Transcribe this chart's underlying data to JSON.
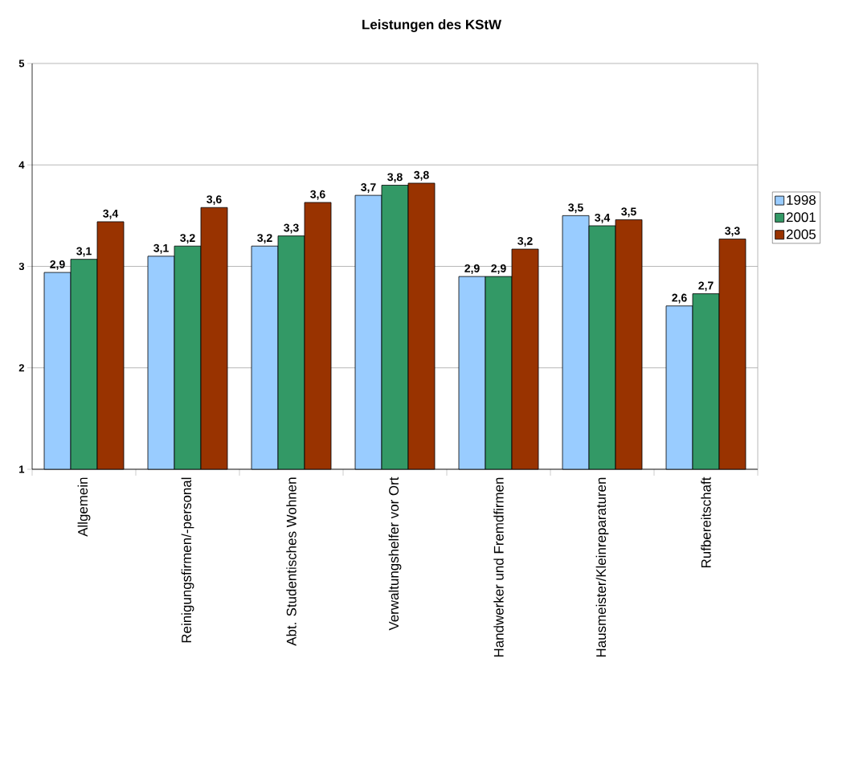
{
  "chart_data": {
    "type": "bar",
    "title": "Leistungen des KStW",
    "categories": [
      "Allgemein",
      "Reinigungsfirmen/-personal",
      "Abt. Studentisches Wohnen",
      "Verwaltungshelfer vor Ort",
      "Handwerker und Fremdfirmen",
      "Hausmeister/Kleinreparaturen",
      "Rufbereitschaft"
    ],
    "series": [
      {
        "name": "1998",
        "color": "#99ccff",
        "values": [
          2.94,
          3.1,
          3.2,
          3.7,
          2.9,
          3.5,
          2.61
        ],
        "value_labels": [
          "2,9",
          "3,1",
          "3,2",
          "3,7",
          "2,9",
          "3,5",
          "2,6"
        ]
      },
      {
        "name": "2001",
        "color": "#339966",
        "values": [
          3.07,
          3.2,
          3.3,
          3.8,
          2.9,
          3.4,
          2.73
        ],
        "value_labels": [
          "3,1",
          "3,2",
          "3,3",
          "3,8",
          "2,9",
          "3,4",
          "2,7"
        ]
      },
      {
        "name": "2005",
        "color": "#993300",
        "values": [
          3.44,
          3.58,
          3.63,
          3.82,
          3.17,
          3.46,
          3.27
        ],
        "value_labels": [
          "3,4",
          "3,6",
          "3,6",
          "3,8",
          "3,2",
          "3,5",
          "3,3"
        ]
      }
    ],
    "ylim": [
      1,
      5
    ],
    "yticks": [
      1,
      2,
      3,
      4,
      5
    ],
    "grid": "y",
    "legend": "right"
  }
}
